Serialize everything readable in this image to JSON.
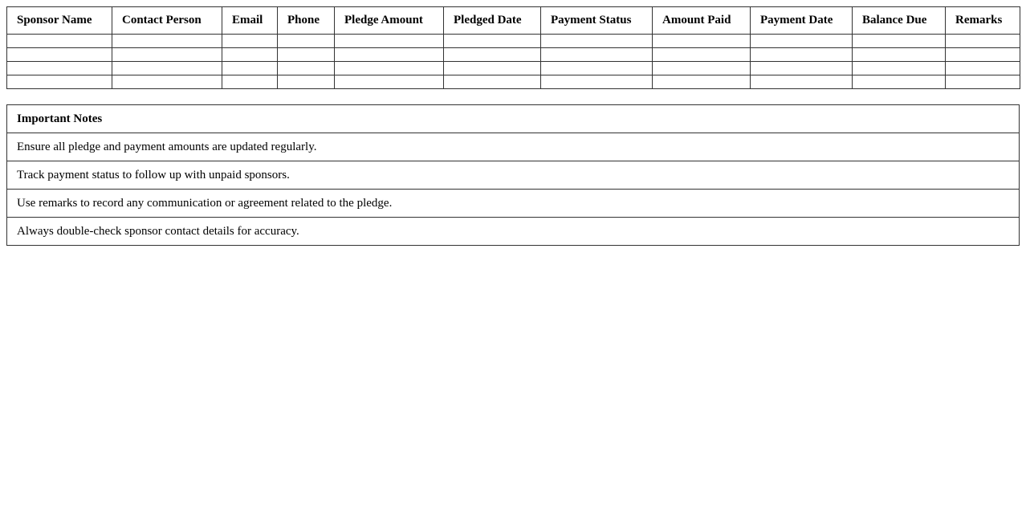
{
  "pledge_table": {
    "columns": [
      "Sponsor Name",
      "Contact Person",
      "Email",
      "Phone",
      "Pledge Amount",
      "Pledged Date",
      "Payment Status",
      "Amount Paid",
      "Payment Date",
      "Balance Due",
      "Remarks"
    ],
    "rows": [
      [
        "",
        "",
        "",
        "",
        "",
        "",
        "",
        "",
        "",
        "",
        ""
      ],
      [
        "",
        "",
        "",
        "",
        "",
        "",
        "",
        "",
        "",
        "",
        ""
      ],
      [
        "",
        "",
        "",
        "",
        "",
        "",
        "",
        "",
        "",
        "",
        ""
      ],
      [
        "",
        "",
        "",
        "",
        "",
        "",
        "",
        "",
        "",
        "",
        ""
      ]
    ]
  },
  "notes": {
    "title": "Important Notes",
    "items": [
      "Ensure all pledge and payment amounts are updated regularly.",
      "Track payment status to follow up with unpaid sponsors.",
      "Use remarks to record any communication or agreement related to the pledge.",
      "Always double-check sponsor contact details for accuracy."
    ]
  }
}
